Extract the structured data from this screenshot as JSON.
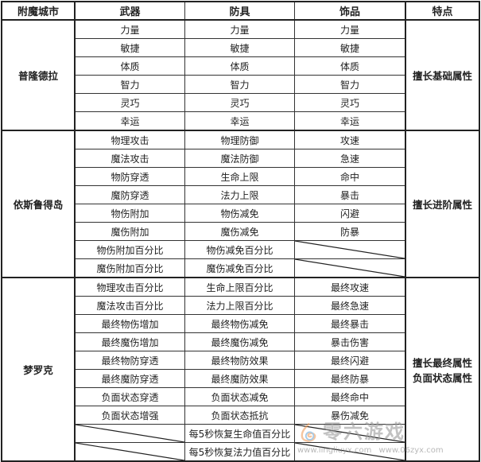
{
  "headers": [
    "附魔城市",
    "武器",
    "防具",
    "饰品",
    "特点"
  ],
  "groups": [
    {
      "city": "普隆德拉",
      "feature": "擅长基础属性",
      "rows": [
        [
          "力量",
          "力量",
          "力量"
        ],
        [
          "敏捷",
          "敏捷",
          "敏捷"
        ],
        [
          "体质",
          "体质",
          "体质"
        ],
        [
          "智力",
          "智力",
          "智力"
        ],
        [
          "灵巧",
          "灵巧",
          "灵巧"
        ],
        [
          "幸运",
          "幸运",
          "幸运"
        ]
      ]
    },
    {
      "city": "依斯鲁得岛",
      "feature": "擅长进阶属性",
      "rows": [
        [
          "物理攻击",
          "物理防御",
          "攻速"
        ],
        [
          "魔法攻击",
          "魔法防御",
          "急速"
        ],
        [
          "物防穿透",
          "生命上限",
          "命中"
        ],
        [
          "魔防穿透",
          "法力上限",
          "暴击"
        ],
        [
          "物伤附加",
          "物伤减免",
          "闪避"
        ],
        [
          "魔伤附加",
          "魔伤减免",
          "防暴"
        ],
        [
          "物伤附加百分比",
          "物伤减免百分比",
          ""
        ],
        [
          "魔伤附加百分比",
          "魔伤减免百分比",
          ""
        ]
      ]
    },
    {
      "city": "梦罗克",
      "feature": "擅长最终属性\n负面状态属性",
      "feature_lines": [
        "擅长最终属性",
        "负面状态属性"
      ],
      "rows": [
        [
          "物理攻击百分比",
          "生命上限百分比",
          "最终攻速"
        ],
        [
          "魔法攻击百分比",
          "法力上限百分比",
          "最终急速"
        ],
        [
          "最终物伤增加",
          "最终物伤减免",
          "最终暴击"
        ],
        [
          "最终魔伤增加",
          "最终魔伤减免",
          "暴击伤害"
        ],
        [
          "最终物防穿透",
          "最终物防效果",
          "最终闪避"
        ],
        [
          "最终魔防穿透",
          "最终魔防效果",
          "最终防暴"
        ],
        [
          "负面状态穿透",
          "负面状态减免",
          "最终命中"
        ],
        [
          "负面状态增强",
          "负面状态抵抗",
          "暴伤减免"
        ],
        [
          "",
          "每5秒恢复生命值百分比",
          ""
        ],
        [
          "",
          "每5秒恢复法力值百分比",
          ""
        ]
      ]
    }
  ],
  "watermark": {
    "logo_text": "零六游戏",
    "urls": "www.lingliuyx.com www.06zyx.com"
  }
}
